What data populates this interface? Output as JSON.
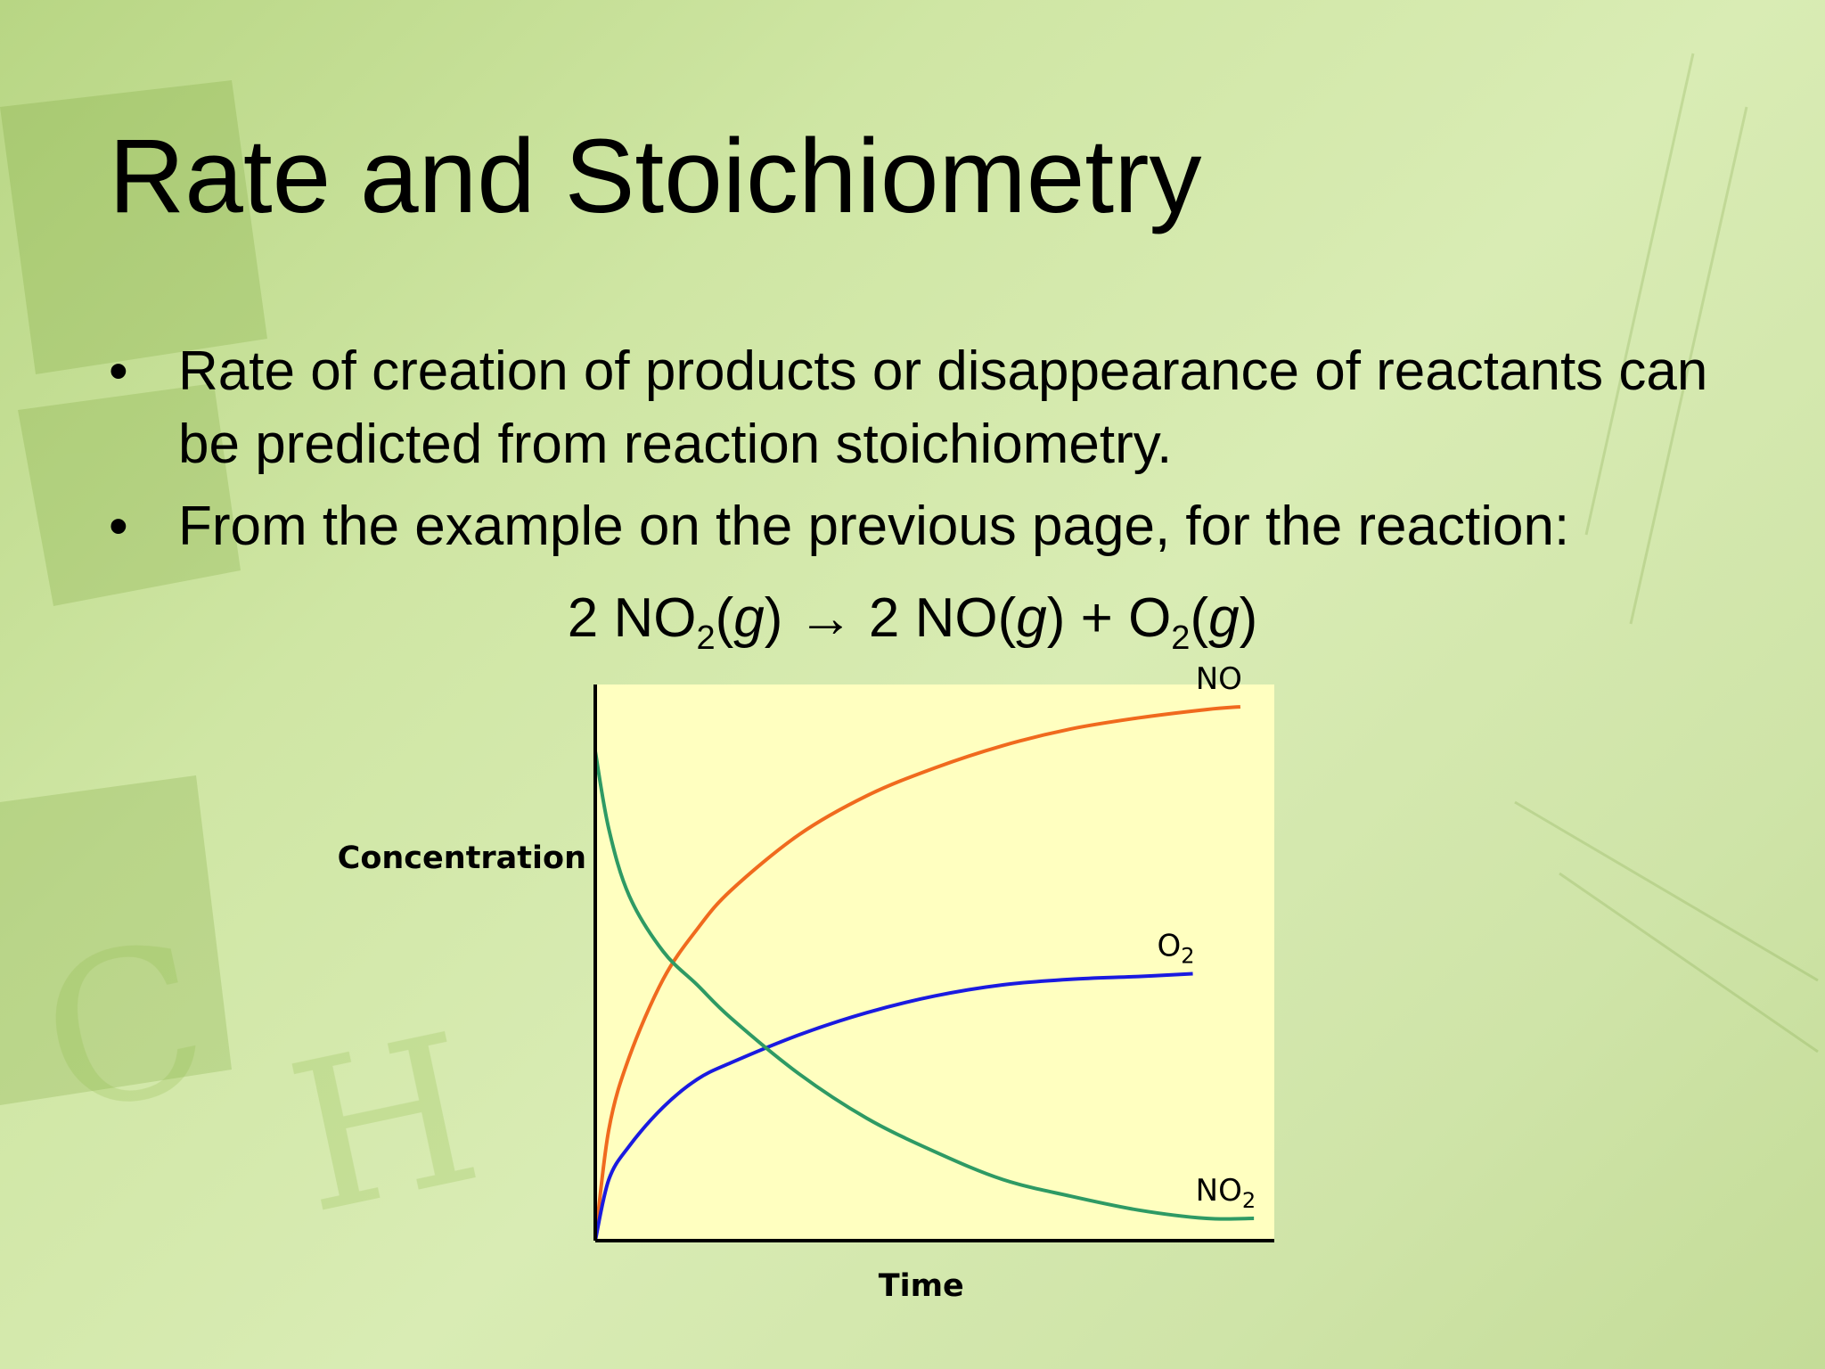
{
  "slide": {
    "title": "Rate and Stoichiometry",
    "bullets": [
      "Rate of creation of products or disappearance of reactants can be predicted from reaction stoichiometry.",
      "From the example on the previous page, for the reaction:"
    ],
    "bullet_symbol": "•",
    "equation": {
      "coef_reactant": "2 NO",
      "sub_reactant": "2",
      "phase_reactant": "g",
      "arrow": "→",
      "coef_product1": "2 NO",
      "phase_product1": "g",
      "plus": "+",
      "product2": "O",
      "sub_product2": "2",
      "phase_product2": "g"
    }
  },
  "chart_data": {
    "type": "line",
    "title": "",
    "xlabel": "Time",
    "ylabel": "Concentration",
    "xlim": [
      0,
      1
    ],
    "ylim": [
      0,
      1
    ],
    "grid": false,
    "plot_background": "#ffffc0",
    "series": [
      {
        "name": "NO",
        "label_main": "NO",
        "label_sub": "",
        "color": "#f06a1e",
        "x": [
          0.0,
          0.02,
          0.05,
          0.1,
          0.15,
          0.2,
          0.3,
          0.4,
          0.5,
          0.6,
          0.7,
          0.8,
          0.9,
          0.95
        ],
        "y": [
          0.0,
          0.2,
          0.33,
          0.47,
          0.56,
          0.63,
          0.73,
          0.8,
          0.85,
          0.89,
          0.92,
          0.94,
          0.955,
          0.96
        ]
      },
      {
        "name": "O2",
        "label_main": "O",
        "label_sub": "2",
        "color": "#1a1ae0",
        "x": [
          0.0,
          0.02,
          0.05,
          0.1,
          0.15,
          0.2,
          0.3,
          0.4,
          0.5,
          0.6,
          0.7,
          0.8,
          0.88
        ],
        "y": [
          0.0,
          0.11,
          0.17,
          0.24,
          0.29,
          0.32,
          0.37,
          0.41,
          0.44,
          0.46,
          0.47,
          0.475,
          0.48
        ]
      },
      {
        "name": "NO2",
        "label_main": "NO",
        "label_sub": "2",
        "color": "#2e9a64",
        "x": [
          0.0,
          0.02,
          0.05,
          0.1,
          0.15,
          0.2,
          0.3,
          0.4,
          0.5,
          0.6,
          0.7,
          0.8,
          0.9,
          0.97
        ],
        "y": [
          0.88,
          0.74,
          0.62,
          0.52,
          0.46,
          0.4,
          0.3,
          0.22,
          0.16,
          0.11,
          0.08,
          0.055,
          0.04,
          0.04
        ]
      }
    ]
  }
}
